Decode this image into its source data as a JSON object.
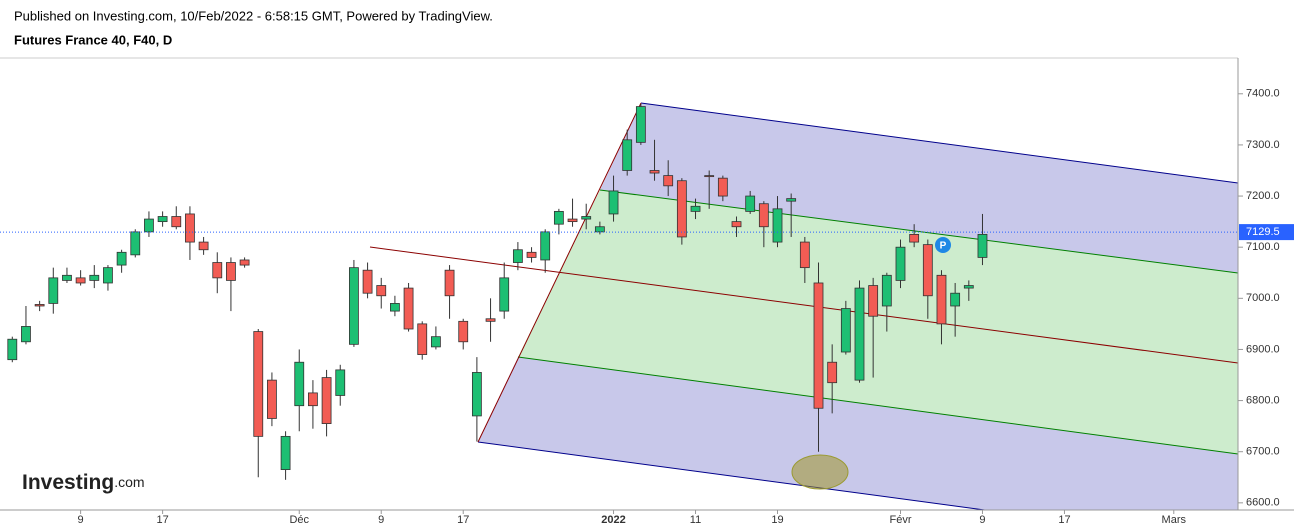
{
  "header": {
    "published": "Published on Investing.com, 10/Feb/2022 - 6:58:15 GMT, Powered by TradingView.",
    "symbol": "Futures France 40, F40, D",
    "logo": "Investing",
    "logo_suffix": ".com"
  },
  "chart_data": {
    "type": "candlestick",
    "up_color": "#1dbf73",
    "down_color": "#f25c54",
    "last_price": 7129.5,
    "last_price_color": "#2962ff",
    "open": [
      6880,
      6915,
      6988,
      6990,
      7035,
      7040,
      7035,
      7030,
      7065,
      7085,
      7130,
      7150,
      7160,
      7165,
      7110,
      7070,
      7070,
      7075,
      6935,
      6840,
      6665,
      6790,
      6815,
      6845,
      6810,
      6910,
      7055,
      7025,
      6975,
      7020,
      6950,
      6905,
      7055,
      6955,
      6770,
      6960,
      6975,
      7070,
      7090,
      7075,
      7145,
      7155,
      7155,
      7130,
      7165,
      7250,
      7305,
      7250,
      7240,
      7230,
      7170,
      7240,
      7235,
      7150,
      7170,
      7185,
      7110,
      7190,
      7110,
      7030,
      6875,
      6895,
      6840,
      7025,
      6985,
      7035,
      7125,
      7105,
      7045,
      6985,
      7020,
      7080
    ],
    "high": [
      6925,
      6985,
      6995,
      7060,
      7060,
      7055,
      7065,
      7065,
      7095,
      7135,
      7170,
      7170,
      7180,
      7180,
      7120,
      7090,
      7080,
      7080,
      6940,
      6855,
      6740,
      6900,
      6840,
      6860,
      6870,
      7075,
      7070,
      7040,
      7005,
      7030,
      6955,
      6945,
      7065,
      6960,
      6885,
      7000,
      7070,
      7110,
      7100,
      7135,
      7175,
      7195,
      7185,
      7150,
      7240,
      7330,
      7380,
      7310,
      7270,
      7235,
      7195,
      7250,
      7240,
      7160,
      7210,
      7190,
      7200,
      7205,
      7120,
      7070,
      6910,
      6995,
      7035,
      7040,
      7050,
      7115,
      7145,
      7115,
      7055,
      7030,
      7035,
      7165
    ],
    "low": [
      6875,
      6910,
      6975,
      6970,
      7030,
      7025,
      7020,
      7015,
      7050,
      7080,
      7120,
      7140,
      7135,
      7075,
      7085,
      7010,
      6975,
      7060,
      6650,
      6750,
      6645,
      6740,
      6745,
      6730,
      6790,
      6905,
      7000,
      6980,
      6965,
      6935,
      6880,
      6900,
      6960,
      6900,
      6720,
      6915,
      6960,
      7055,
      7070,
      7050,
      7125,
      7140,
      7135,
      7125,
      7150,
      7240,
      7300,
      7230,
      7200,
      7105,
      7155,
      7175,
      7190,
      7120,
      7165,
      7100,
      7100,
      7120,
      7030,
      6700,
      6775,
      6890,
      6835,
      6845,
      6935,
      7020,
      7100,
      6960,
      6910,
      6925,
      6995,
      7065
    ],
    "close": [
      6920,
      6945,
      6985,
      7040,
      7045,
      7030,
      7045,
      7060,
      7090,
      7130,
      7155,
      7160,
      7140,
      7110,
      7095,
      7040,
      7035,
      7065,
      6730,
      6765,
      6730,
      6875,
      6790,
      6755,
      6860,
      7060,
      7010,
      7005,
      6990,
      6940,
      6890,
      6925,
      7005,
      6915,
      6855,
      6955,
      7040,
      7095,
      7080,
      7130,
      7170,
      7150,
      7160,
      7140,
      7210,
      7310,
      7375,
      7245,
      7220,
      7120,
      7180,
      7238,
      7200,
      7140,
      7200,
      7140,
      7175,
      7195,
      7060,
      6785,
      6835,
      6980,
      7020,
      6965,
      7045,
      7100,
      7110,
      7005,
      6950,
      7010,
      7025,
      7125
    ],
    "xlim": [
      -0.9,
      89.7
    ],
    "xticks": [
      {
        "value": 5,
        "label": "9"
      },
      {
        "value": 11,
        "label": "17"
      },
      {
        "value": 21,
        "label": "Déc"
      },
      {
        "value": 27,
        "label": "9"
      },
      {
        "value": 33,
        "label": "17"
      },
      {
        "value": 44,
        "label": "2022"
      },
      {
        "value": 50,
        "label": "11"
      },
      {
        "value": 56,
        "label": "19"
      },
      {
        "value": 65,
        "label": "Févr"
      },
      {
        "value": 71,
        "label": "9"
      },
      {
        "value": 77,
        "label": "17"
      },
      {
        "value": 85,
        "label": "Mars"
      }
    ],
    "ylim": [
      6586,
      7470
    ],
    "yticks": [
      {
        "value": 6600,
        "label": "6600.0"
      },
      {
        "value": 6700,
        "label": "6700.0"
      },
      {
        "value": 6800,
        "label": "6800.0"
      },
      {
        "value": 6900,
        "label": "6900.0"
      },
      {
        "value": 7000,
        "label": "7000.0"
      },
      {
        "value": 7100,
        "label": "7100.0"
      },
      {
        "value": 7200,
        "label": "7200.0"
      },
      {
        "value": 7300,
        "label": "7300.0"
      },
      {
        "value": 7400,
        "label": "7400.0"
      }
    ]
  }
}
